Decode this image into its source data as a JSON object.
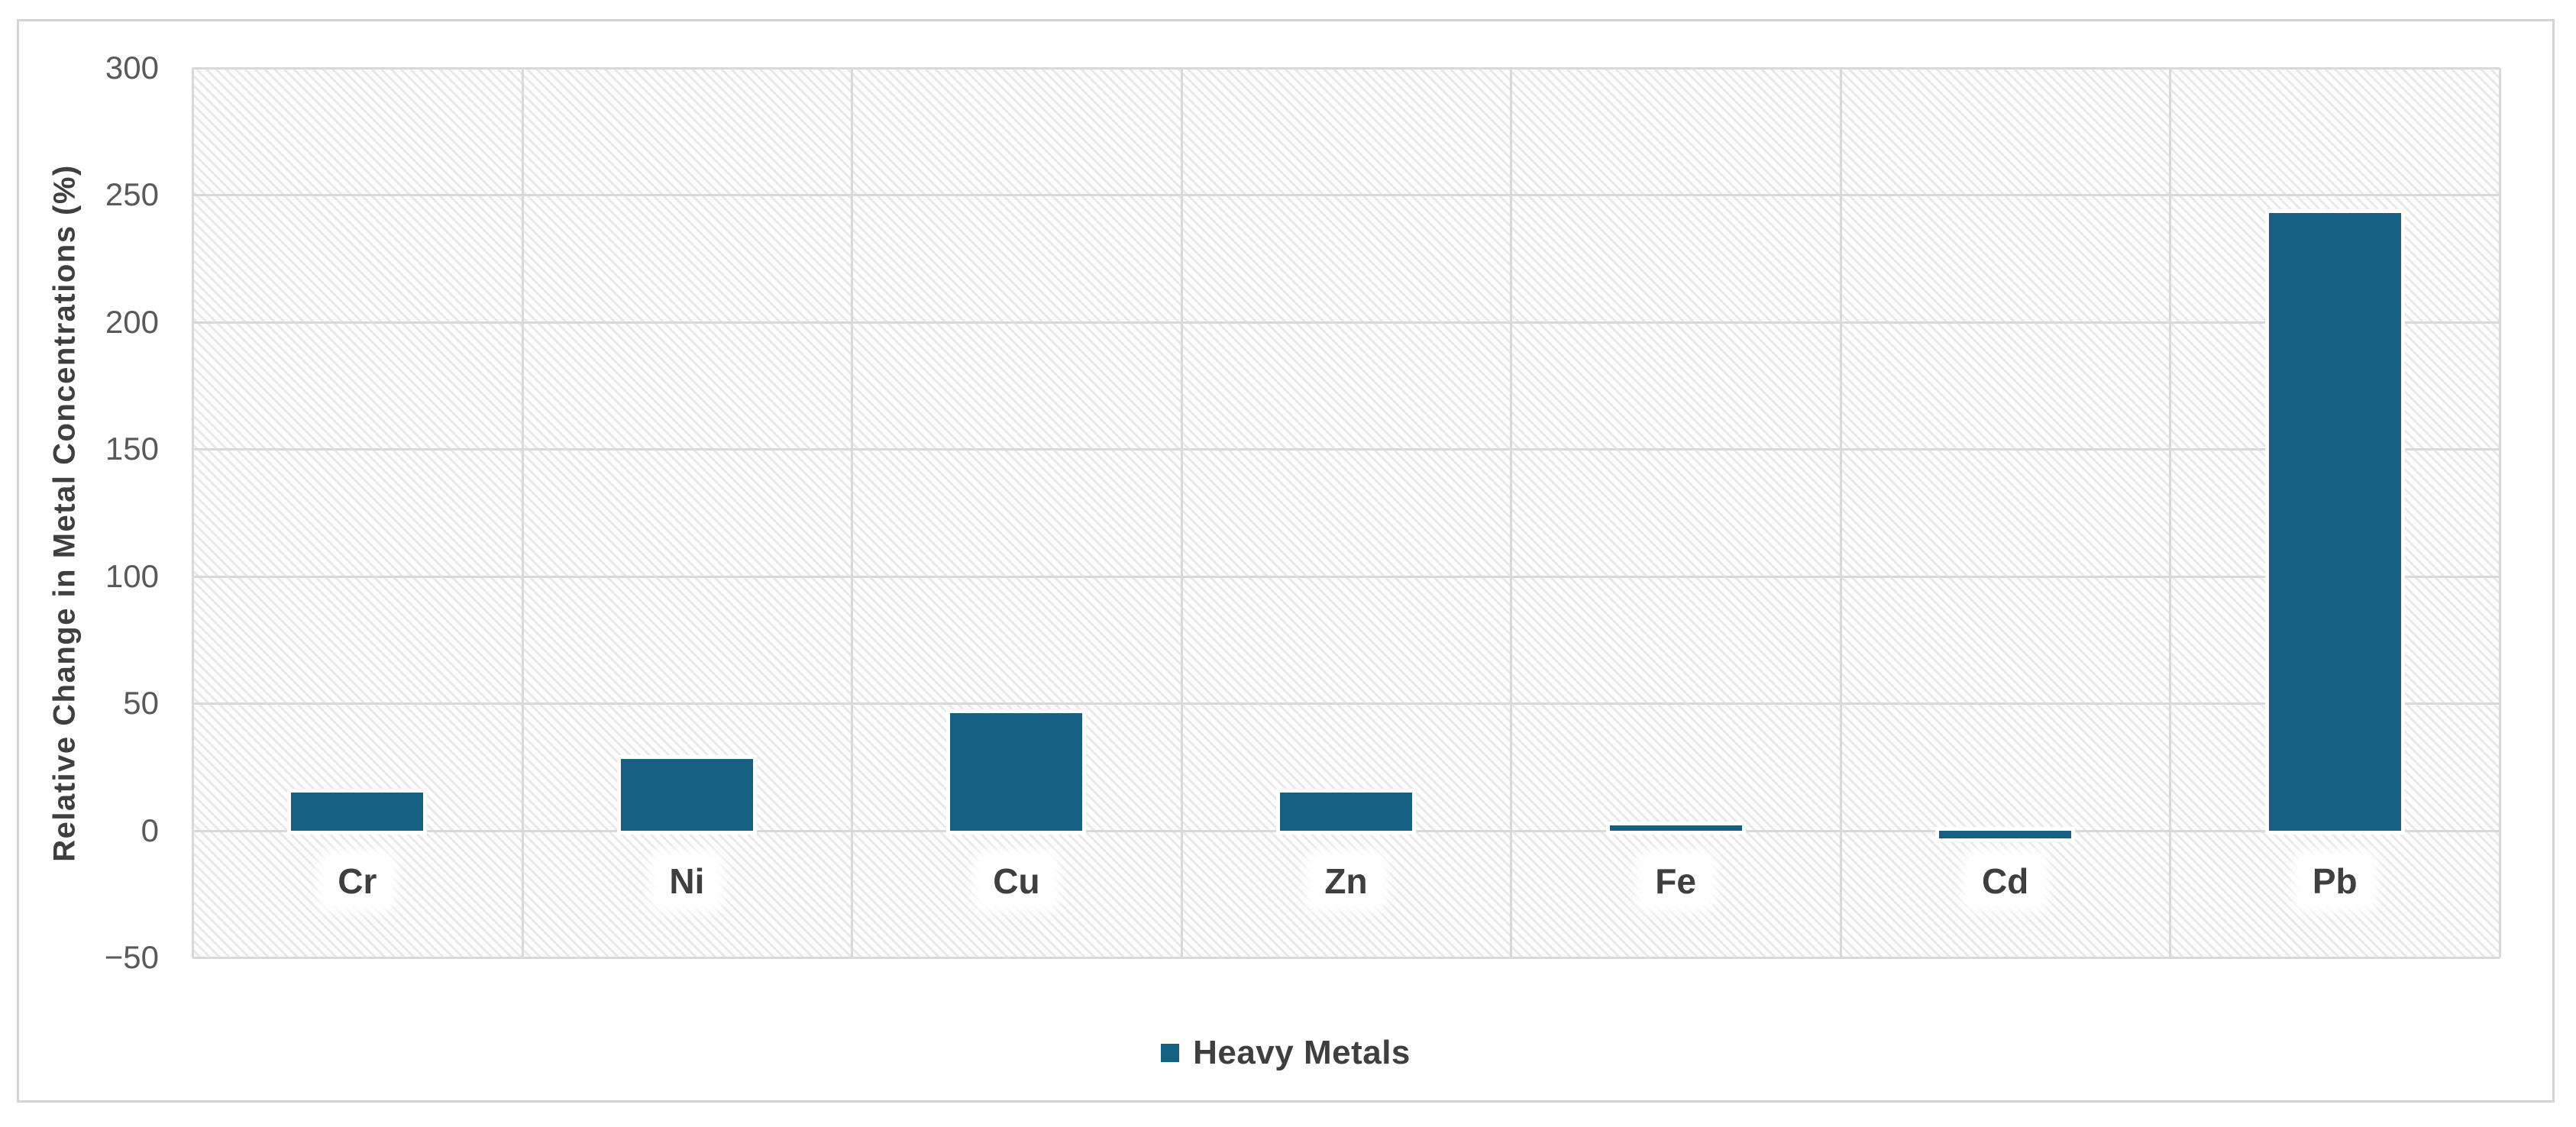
{
  "chart_data": {
    "type": "bar",
    "title": "",
    "xlabel": "",
    "ylabel": "Relative Change in Metal Concentrations (%)",
    "categories": [
      "Cr",
      "Ni",
      "Cu",
      "Zn",
      "Fe",
      "Cd",
      "Pb"
    ],
    "series": [
      {
        "name": "Heavy Metals",
        "values": [
          15,
          28,
          46,
          15,
          2,
          -3,
          243
        ]
      }
    ],
    "ylim": [
      -50,
      300
    ],
    "yticks": [
      300,
      250,
      200,
      150,
      100,
      50,
      0,
      -50
    ],
    "grid": "both",
    "legend_position": "bottom-center",
    "plot_background": "light-diagonal-hatch",
    "colors": {
      "bar": "#155f82",
      "gridline": "#d9d9d9",
      "tick_label": "#595959",
      "category_label": "#3f3f3f",
      "axis_title": "#3f3f3f",
      "legend_text": "#3f3f3f",
      "frame_border": "#d4d4d4",
      "hatch_line": "#e9e9e9"
    }
  }
}
